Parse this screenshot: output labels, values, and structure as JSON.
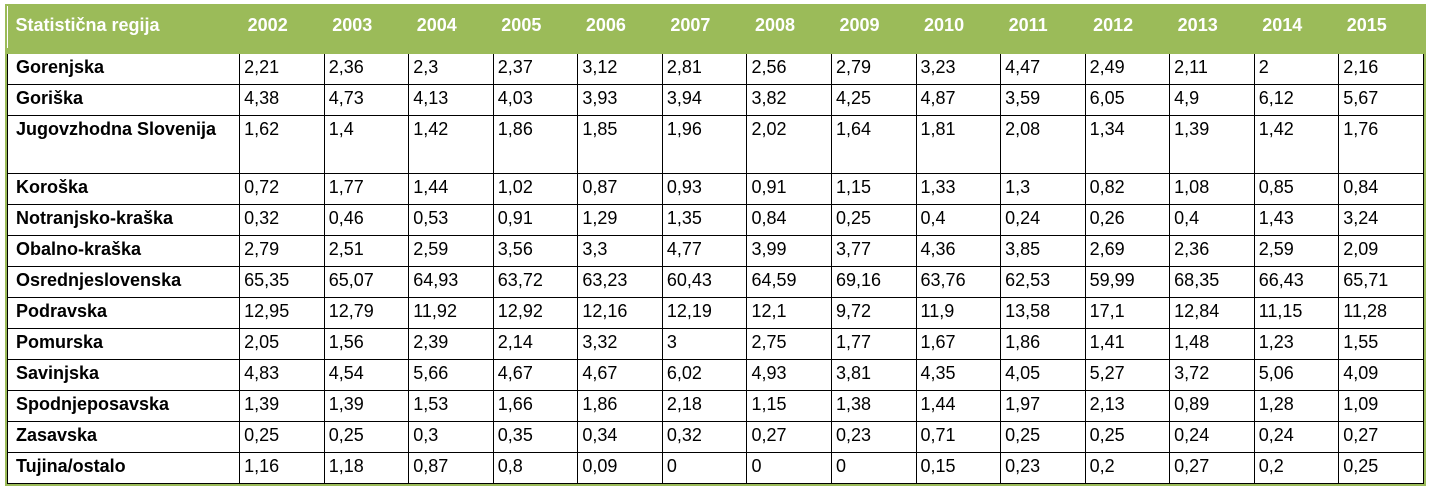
{
  "header": [
    "Statistična regija",
    "2002",
    "2003",
    "2004",
    "2005",
    "2006",
    "2007",
    "2008",
    "2009",
    "2010",
    "2011",
    "2012",
    "2013",
    "2014",
    "2015"
  ],
  "rows": [
    {
      "region": "Gorenjska",
      "values": [
        "2,21",
        "2,36",
        "2,3",
        "2,37",
        "3,12",
        "2,81",
        "2,56",
        "2,79",
        "3,23",
        "4,47",
        "2,49",
        "2,11",
        "2",
        "2,16"
      ]
    },
    {
      "region": "Goriška",
      "values": [
        "4,38",
        "4,73",
        "4,13",
        "4,03",
        "3,93",
        "3,94",
        "3,82",
        "4,25",
        "4,87",
        "3,59",
        "6,05",
        "4,9",
        "6,12",
        "5,67"
      ]
    },
    {
      "region": "Jugovzhodna Slovenija",
      "values": [
        "1,62",
        "1,4",
        "1,42",
        "1,86",
        "1,85",
        "1,96",
        "2,02",
        "1,64",
        "1,81",
        "2,08",
        "1,34",
        "1,39",
        "1,42",
        "1,76"
      ]
    },
    {
      "region": "Koroška",
      "values": [
        "0,72",
        "1,77",
        "1,44",
        "1,02",
        "0,87",
        "0,93",
        "0,91",
        "1,15",
        "1,33",
        "1,3",
        "0,82",
        "1,08",
        "0,85",
        "0,84"
      ]
    },
    {
      "region": "Notranjsko-kraška",
      "values": [
        "0,32",
        "0,46",
        "0,53",
        "0,91",
        "1,29",
        "1,35",
        "0,84",
        "0,25",
        "0,4",
        "0,24",
        "0,26",
        "0,4",
        "1,43",
        "3,24"
      ]
    },
    {
      "region": "Obalno-kraška",
      "values": [
        "2,79",
        "2,51",
        "2,59",
        "3,56",
        "3,3",
        "4,77",
        "3,99",
        "3,77",
        "4,36",
        "3,85",
        "2,69",
        "2,36",
        "2,59",
        "2,09"
      ]
    },
    {
      "region": "Osrednjeslovenska",
      "values": [
        "65,35",
        "65,07",
        "64,93",
        "63,72",
        "63,23",
        "60,43",
        "64,59",
        "69,16",
        "63,76",
        "62,53",
        "59,99",
        "68,35",
        "66,43",
        "65,71"
      ]
    },
    {
      "region": "Podravska",
      "values": [
        "12,95",
        "12,79",
        "11,92",
        "12,92",
        "12,16",
        "12,19",
        "12,1",
        "9,72",
        "11,9",
        "13,58",
        "17,1",
        "12,84",
        "11,15",
        "11,28"
      ]
    },
    {
      "region": "Pomurska",
      "values": [
        "2,05",
        "1,56",
        "2,39",
        "2,14",
        "3,32",
        "3",
        "2,75",
        "1,77",
        "1,67",
        "1,86",
        "1,41",
        "1,48",
        "1,23",
        "1,55"
      ]
    },
    {
      "region": "Savinjska",
      "values": [
        "4,83",
        "4,54",
        "5,66",
        "4,67",
        "4,67",
        "6,02",
        "4,93",
        "3,81",
        "4,35",
        "4,05",
        "5,27",
        "3,72",
        "5,06",
        "4,09"
      ]
    },
    {
      "region": "Spodnjeposavska",
      "values": [
        "1,39",
        "1,39",
        "1,53",
        "1,66",
        "1,86",
        "2,18",
        "1,15",
        "1,38",
        "1,44",
        "1,97",
        "2,13",
        "0,89",
        "1,28",
        "1,09"
      ]
    },
    {
      "region": "Zasavska",
      "values": [
        "0,25",
        "0,25",
        "0,3",
        "0,35",
        "0,34",
        "0,32",
        "0,27",
        "0,23",
        "0,71",
        "0,25",
        "0,25",
        "0,24",
        "0,24",
        "0,27"
      ]
    },
    {
      "region": "Tujina/ostalo",
      "values": [
        "1,16",
        "1,18",
        "0,87",
        "0,8",
        "0,09",
        "0",
        "0",
        "0",
        "0,15",
        "0,23",
        "0,2",
        "0,27",
        "0,2",
        "0,25"
      ]
    }
  ],
  "colors": {
    "header_bg": "#9bbb59",
    "header_text": "#ffffff"
  }
}
